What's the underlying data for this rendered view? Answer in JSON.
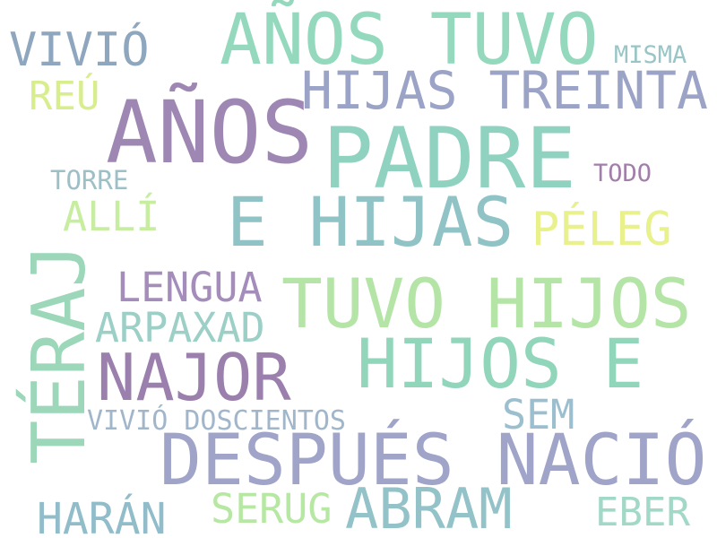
{
  "word_cloud": {
    "words": [
      {
        "text": "AÑOS TUVO",
        "color": "#94d9bd"
      },
      {
        "text": "VIVIÓ",
        "color": "#8ea7bf"
      },
      {
        "text": "MISMA",
        "color": "#99c5c7"
      },
      {
        "text": "HIJAS TREINTA",
        "color": "#9ba3c6"
      },
      {
        "text": "REÚ",
        "color": "#d8ee8e"
      },
      {
        "text": "AÑOS",
        "color": "#9f87b4"
      },
      {
        "text": "PADRE",
        "color": "#8fd2c0"
      },
      {
        "text": "TODO",
        "color": "#a27eaa"
      },
      {
        "text": "TORRE",
        "color": "#9dc0c7"
      },
      {
        "text": "E HIJAS",
        "color": "#8fc3c6"
      },
      {
        "text": "ALLÍ",
        "color": "#c7eea0"
      },
      {
        "text": "PÉLEG",
        "color": "#e8f18c"
      },
      {
        "text": "TÉRAJ",
        "color": "#9cd7b9"
      },
      {
        "text": "LENGUA",
        "color": "#a48dba"
      },
      {
        "text": "TUVO HIJOS",
        "color": "#b4e5a7"
      },
      {
        "text": "ARPAXAD",
        "color": "#9ccfc6"
      },
      {
        "text": "HIJOS E",
        "color": "#91d5bb"
      },
      {
        "text": "NAJOR",
        "color": "#9b7fac"
      },
      {
        "text": "SEM",
        "color": "#9cbfd0"
      },
      {
        "text": "VIVIÓ DOSCIENTOS",
        "color": "#a1b6ca"
      },
      {
        "text": "DESPUÉS NACIÓ",
        "color": "#9fa4c8"
      },
      {
        "text": "HARÁN",
        "color": "#91bcc9"
      },
      {
        "text": "SERUG",
        "color": "#b7e8a3"
      },
      {
        "text": "ABRAM",
        "color": "#93c3c8"
      },
      {
        "text": "EBER",
        "color": "#a2d8c7"
      }
    ]
  }
}
